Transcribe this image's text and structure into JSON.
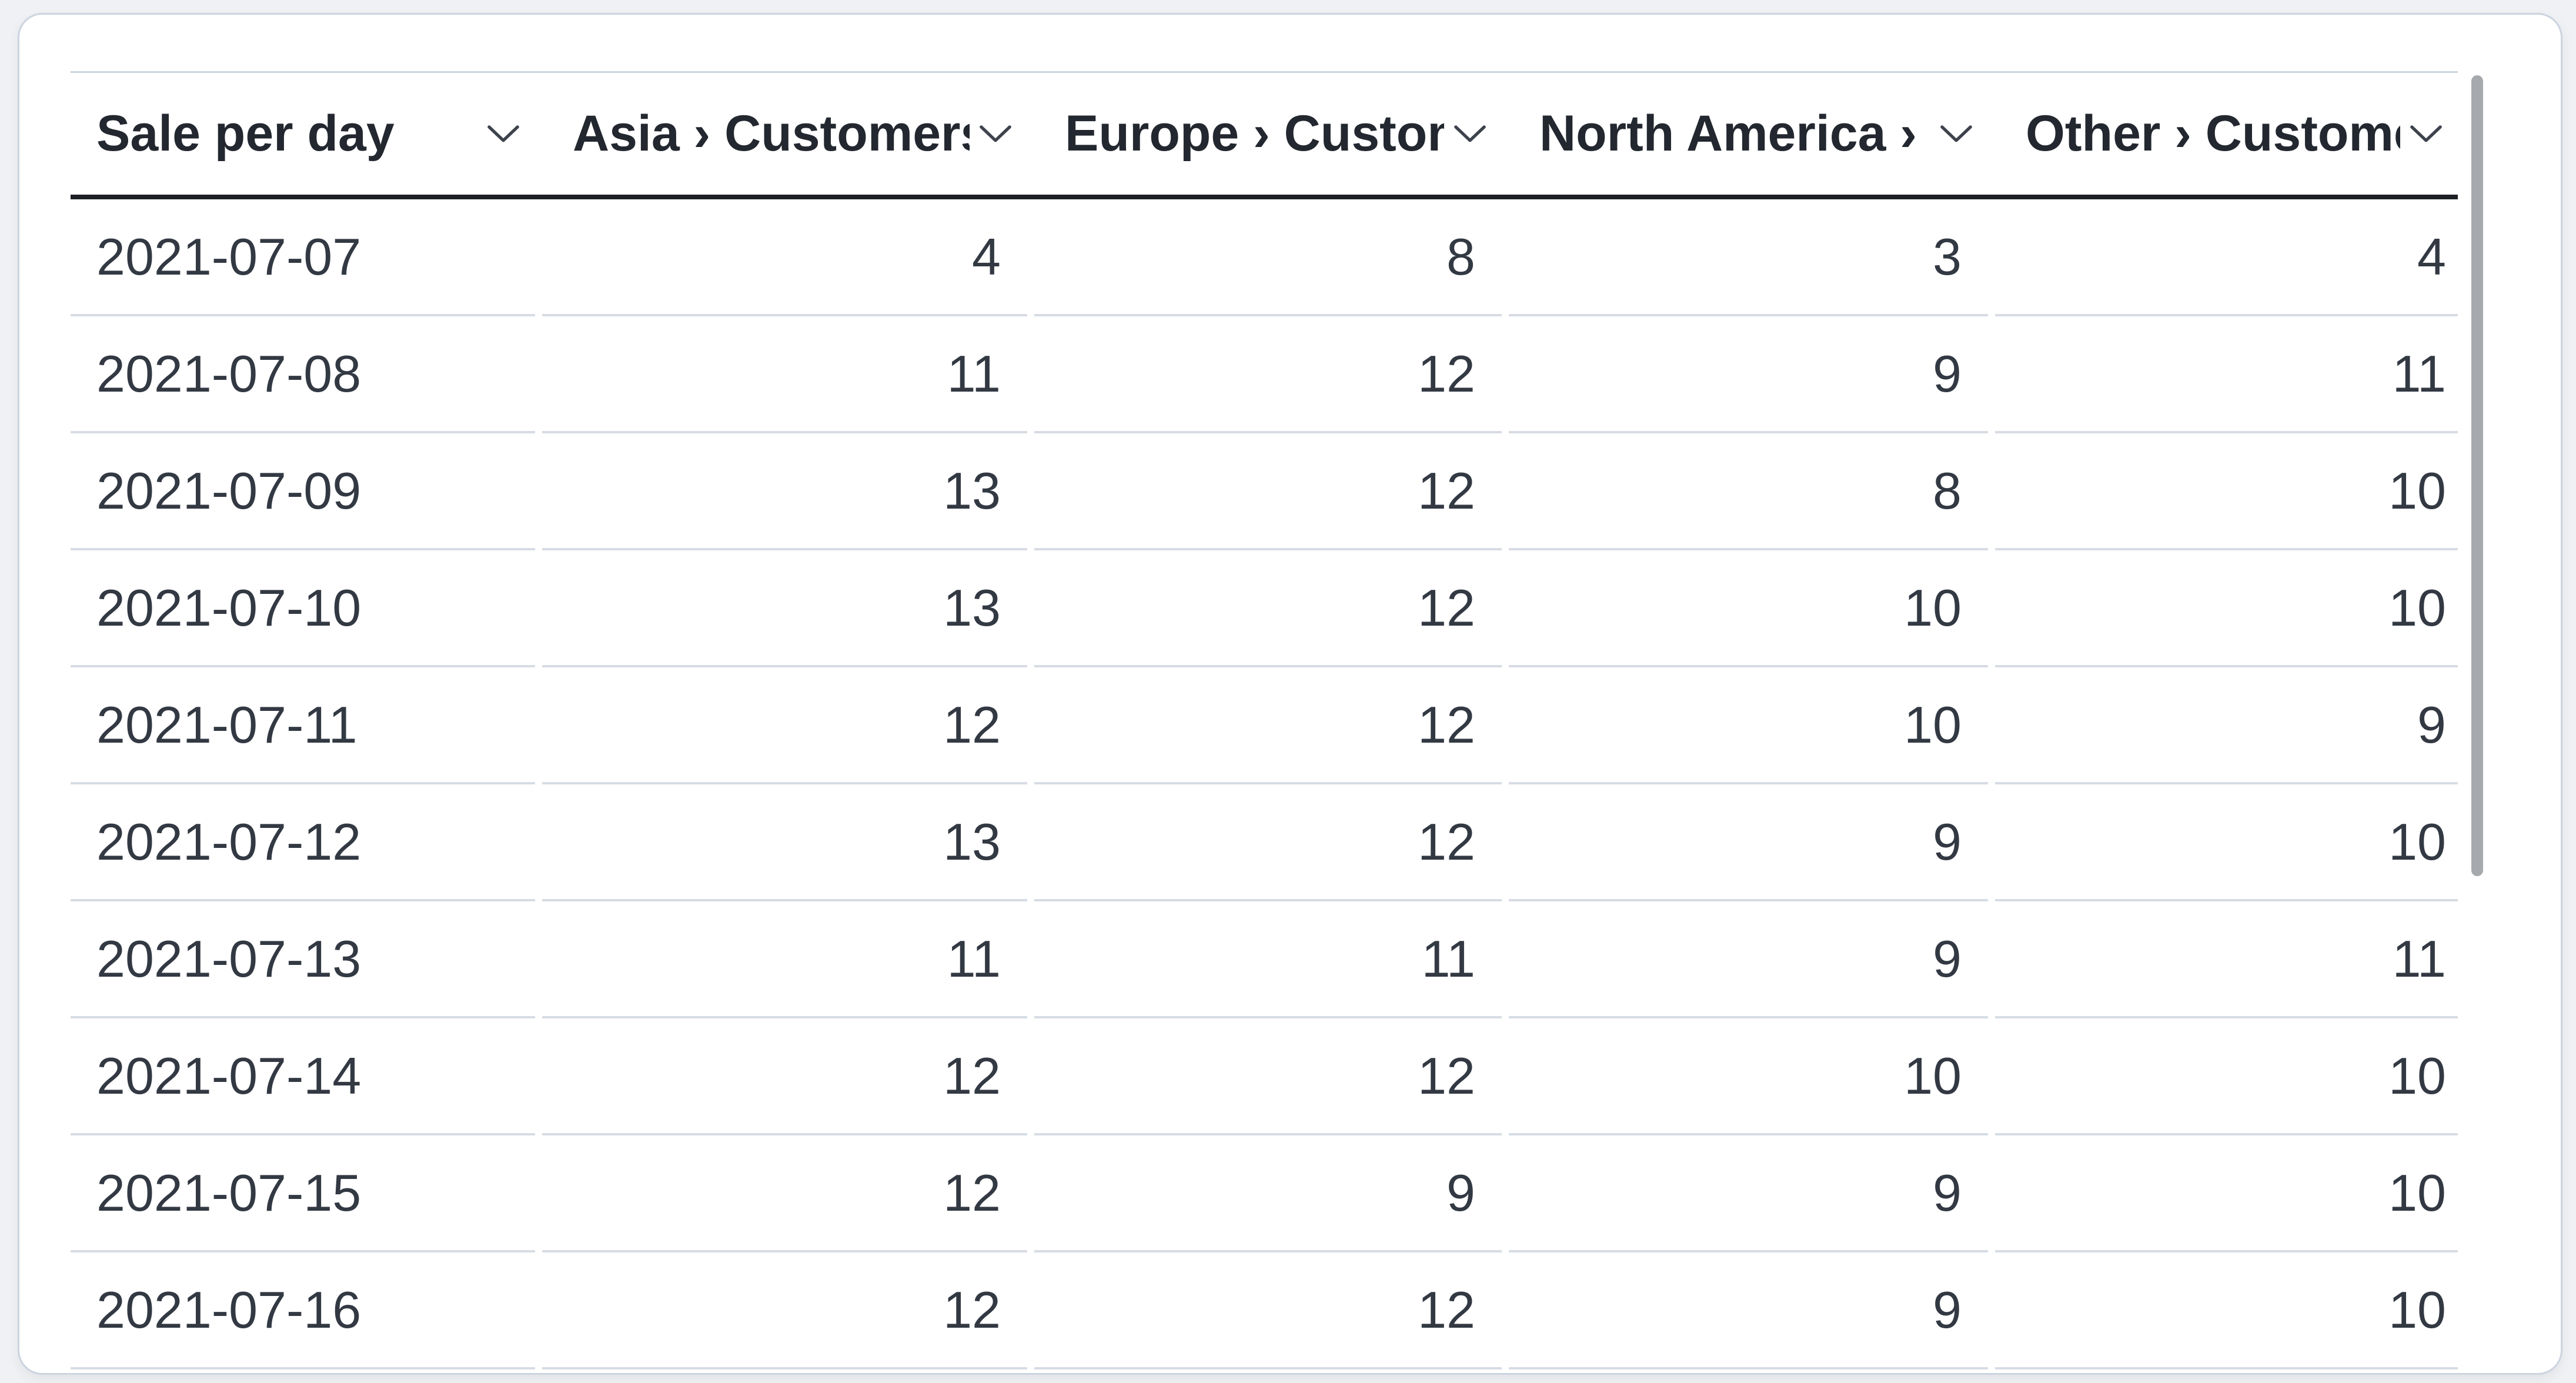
{
  "colors": {
    "page_background": "#eff1f4",
    "card_background": "#ffffff",
    "card_border": "#ccd4e0",
    "header_text": "#23272f",
    "body_text": "#333943",
    "header_underline": "#1c1f24",
    "row_divider": "#d7dce4",
    "scrollbar_thumb": "#a6a9ae"
  },
  "icons": {
    "column_sort": "chevron-down-icon"
  },
  "table": {
    "title": "Sale per day",
    "columns": [
      {
        "label": "Sale per day",
        "align": "left"
      },
      {
        "label": "Asia › Customers",
        "align": "right"
      },
      {
        "label": "Europe › Customers",
        "align": "right"
      },
      {
        "label": "North America › Customers",
        "align": "right"
      },
      {
        "label": "Other › Customers",
        "align": "right"
      }
    ],
    "rows": [
      {
        "cells": [
          "2021-07-07",
          "4",
          "8",
          "3",
          "4"
        ]
      },
      {
        "cells": [
          "2021-07-08",
          "11",
          "12",
          "9",
          "11"
        ]
      },
      {
        "cells": [
          "2021-07-09",
          "13",
          "12",
          "8",
          "10"
        ]
      },
      {
        "cells": [
          "2021-07-10",
          "13",
          "12",
          "10",
          "10"
        ]
      },
      {
        "cells": [
          "2021-07-11",
          "12",
          "12",
          "10",
          "9"
        ]
      },
      {
        "cells": [
          "2021-07-12",
          "13",
          "12",
          "9",
          "10"
        ]
      },
      {
        "cells": [
          "2021-07-13",
          "11",
          "11",
          "9",
          "11"
        ]
      },
      {
        "cells": [
          "2021-07-14",
          "12",
          "12",
          "10",
          "10"
        ]
      },
      {
        "cells": [
          "2021-07-15",
          "12",
          "9",
          "9",
          "10"
        ]
      },
      {
        "cells": [
          "2021-07-16",
          "12",
          "12",
          "9",
          "10"
        ]
      }
    ]
  },
  "chart_data": {
    "type": "table",
    "title": "Sale per day",
    "columns": [
      "Sale per day",
      "Asia › Customers",
      "Europe › Customers",
      "North America › Customers",
      "Other › Customers"
    ],
    "rows": [
      [
        "2021-07-07",
        4,
        8,
        3,
        4
      ],
      [
        "2021-07-08",
        11,
        12,
        9,
        11
      ],
      [
        "2021-07-09",
        13,
        12,
        8,
        10
      ],
      [
        "2021-07-10",
        13,
        12,
        10,
        10
      ],
      [
        "2021-07-11",
        12,
        12,
        10,
        9
      ],
      [
        "2021-07-12",
        13,
        12,
        9,
        10
      ],
      [
        "2021-07-13",
        11,
        11,
        9,
        11
      ],
      [
        "2021-07-14",
        12,
        12,
        10,
        10
      ],
      [
        "2021-07-15",
        12,
        9,
        9,
        10
      ],
      [
        "2021-07-16",
        12,
        12,
        9,
        10
      ]
    ]
  }
}
